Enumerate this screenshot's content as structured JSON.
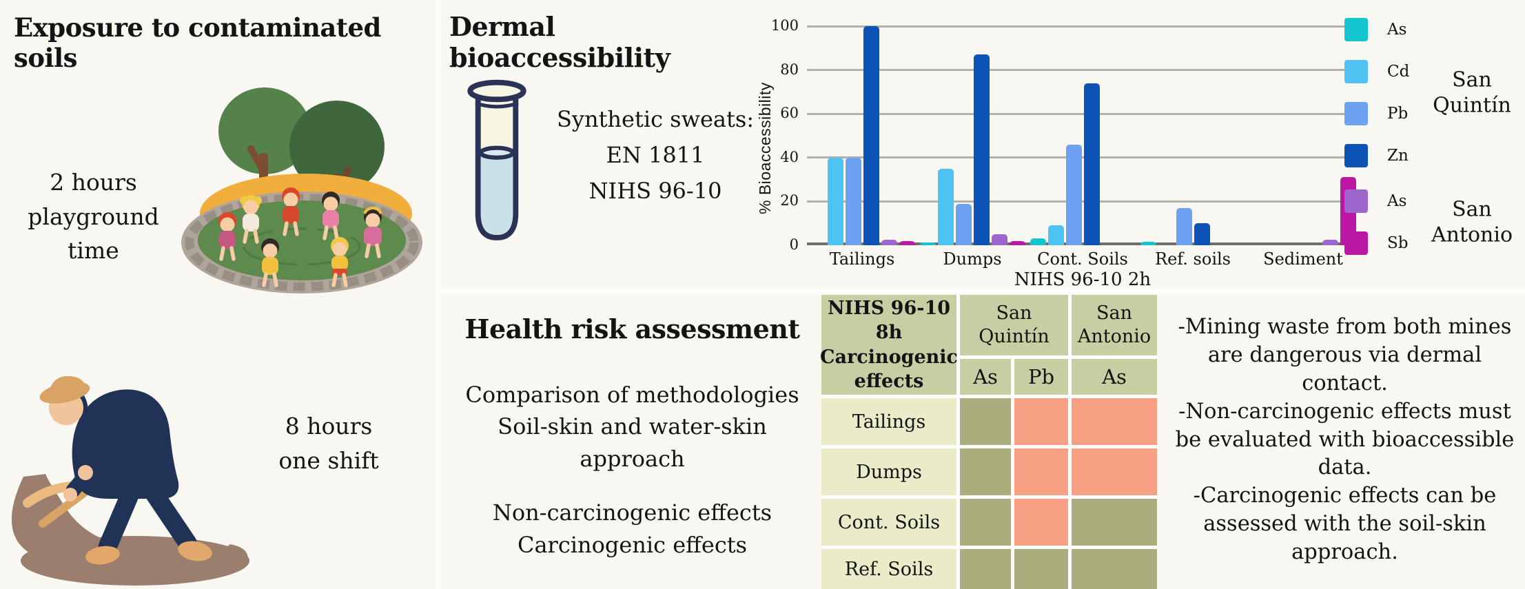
{
  "exposure": {
    "title": "Exposure to contaminated soils",
    "playground_caption": "2 hours\nplayground\ntime",
    "shift_caption": "8 hours\none shift"
  },
  "dermal": {
    "title": "Dermal bioaccessibility",
    "sweats_text": "Synthetic sweats:\nEN 1811\nNIHS 96-10"
  },
  "chart_data": {
    "type": "bar",
    "title": "",
    "xlabel": "NIHS 96-10 2h",
    "ylabel": "% Bioaccessibility",
    "ylim": [
      0,
      100
    ],
    "yticks": [
      0,
      20,
      40,
      60,
      80,
      100
    ],
    "grid": true,
    "legend_position": "right",
    "categories": [
      "Tailings",
      "Dumps",
      "Cont. Soils",
      "Ref. soils",
      "Sediment"
    ],
    "series": [
      {
        "name": "As",
        "site": "San Quintín",
        "color": "#14c4cf",
        "values": [
          0,
          0.8,
          3,
          1.5,
          0
        ]
      },
      {
        "name": "Cd",
        "site": "San Quintín",
        "color": "#4ec3f2",
        "values": [
          40,
          35,
          9,
          0,
          0
        ]
      },
      {
        "name": "Pb",
        "site": "San Quintín",
        "color": "#6da2f2",
        "values": [
          40,
          19,
          46,
          17,
          0
        ]
      },
      {
        "name": "Zn",
        "site": "San Quintín",
        "color": "#0d52b5",
        "values": [
          100,
          87,
          74,
          10,
          0
        ]
      },
      {
        "name": "As",
        "site": "San Antonio",
        "color": "#9d66cd",
        "values": [
          2.5,
          5,
          0,
          0,
          2.5
        ]
      },
      {
        "name": "Sb",
        "site": "San Antonio",
        "color": "#bb17a3",
        "values": [
          1.8,
          1.8,
          0,
          0,
          31
        ]
      }
    ],
    "legend_groups": [
      {
        "site_label": "San Quintín",
        "entries": [
          {
            "name": "As",
            "color": "#14c4cf"
          },
          {
            "name": "Cd",
            "color": "#4ec3f2"
          },
          {
            "name": "Pb",
            "color": "#6da2f2"
          },
          {
            "name": "Zn",
            "color": "#0d52b5"
          }
        ]
      },
      {
        "site_label": "San Antonio",
        "entries": [
          {
            "name": "As",
            "color": "#9d66cd"
          },
          {
            "name": "Sb",
            "color": "#bb17a3"
          }
        ]
      }
    ]
  },
  "health": {
    "title": "Health risk assessment",
    "block1": "Comparison of methodologies\nSoil-skin and water-skin approach",
    "block2": "Non-carcinogenic effects\nCarcinogenic effects"
  },
  "risk_table": {
    "corner_header": "NIHS 96-10 8h\nCarcinogenic\neffects",
    "site_headers": [
      "San Quintín",
      "San Antonio"
    ],
    "element_headers": [
      "As",
      "Pb",
      "As"
    ],
    "rows": [
      {
        "label": "Tailings",
        "cells": [
          "no-risk",
          "risk",
          "risk"
        ]
      },
      {
        "label": "Dumps",
        "cells": [
          "no-risk",
          "risk",
          "risk"
        ]
      },
      {
        "label": "Cont. Soils",
        "cells": [
          "no-risk",
          "risk",
          "no-risk"
        ]
      },
      {
        "label": "Ref. Soils",
        "cells": [
          "no-risk",
          "no-risk",
          "no-risk"
        ]
      }
    ],
    "cell_colors": {
      "risk": "#f7a083",
      "no-risk": "#a9ae7c"
    },
    "header_bg": "#c9cda3",
    "row_label_bg": "#e9ebc9"
  },
  "conclusions": {
    "bullets": [
      "-Mining waste from both mines are dangerous via dermal contact.",
      "-Non-carcinogenic effects must be evaluated with bioaccessible data.",
      "-Carcinogenic effects can be assessed with the soil-skin approach."
    ]
  }
}
